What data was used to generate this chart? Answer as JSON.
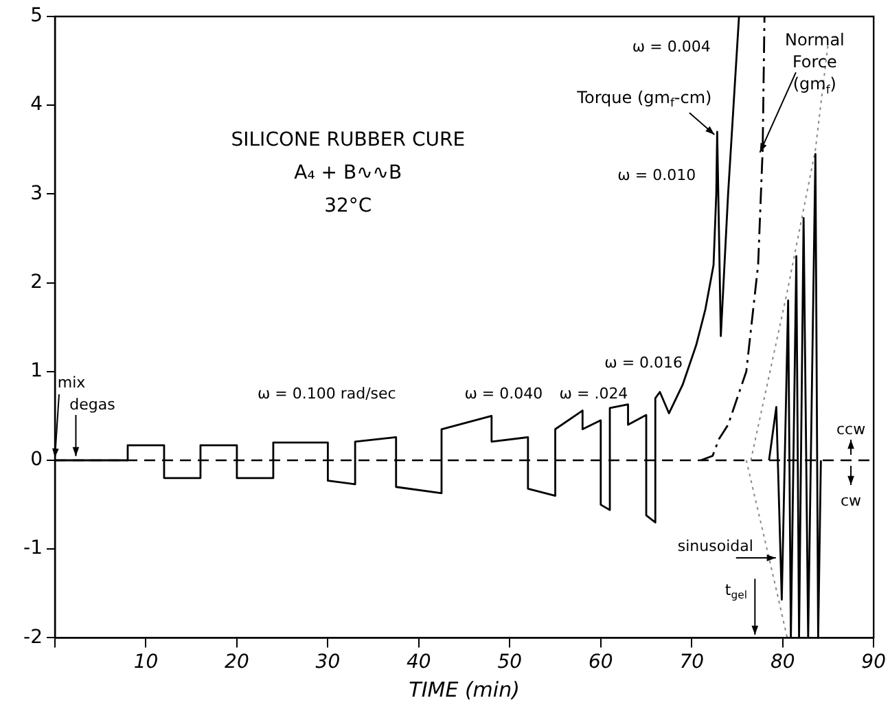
{
  "chart_data": {
    "type": "line",
    "title": "SILICONE RUBBER CURE",
    "subtitle": "A₄ + B∿∿B",
    "xlabel": "TIME (min)",
    "xlim": [
      0,
      90
    ],
    "xticks": [
      {
        "value": 0,
        "label": null
      },
      10,
      20,
      30,
      40,
      50,
      60,
      70,
      80,
      90
    ],
    "ylim": [
      -2,
      5
    ],
    "yticks": [
      -2,
      -1,
      0,
      1,
      2,
      3,
      4,
      5
    ],
    "grid": false,
    "legend": false,
    "marker": "none",
    "ref_lines": [
      {
        "axis": "y",
        "value": 0,
        "line_style": "dashed",
        "color": "#000000"
      }
    ],
    "series": [
      {
        "name": "Torque (gm$_{f}$-cm)",
        "type": "line",
        "color": "#000000",
        "line_style": "solid",
        "x": [
          0,
          8,
          8,
          12,
          12,
          16,
          16,
          20,
          20,
          24,
          24,
          30,
          30,
          33,
          33,
          37.5,
          37.5,
          42.5,
          42.5,
          48,
          48,
          52,
          52,
          55,
          55,
          58,
          58,
          60,
          60,
          61,
          61,
          63,
          63,
          65,
          65,
          66,
          66,
          66.5,
          67.5,
          69,
          70.5,
          71.5,
          72.4,
          72.7,
          72.8,
          73.2,
          73.5,
          74,
          74.6,
          75.2
        ],
        "values": [
          0,
          0,
          0.17,
          0.17,
          -0.2,
          -0.2,
          0.17,
          0.17,
          -0.2,
          -0.2,
          0.2,
          0.2,
          -0.23,
          -0.27,
          0.21,
          0.26,
          -0.3,
          -0.37,
          0.35,
          0.5,
          0.21,
          0.26,
          -0.32,
          -0.4,
          0.35,
          0.56,
          0.35,
          0.45,
          -0.5,
          -0.56,
          0.59,
          0.63,
          0.4,
          0.51,
          -0.62,
          -0.7,
          0.7,
          0.77,
          0.53,
          0.85,
          1.3,
          1.7,
          2.2,
          3.0,
          3.7,
          1.4,
          2.0,
          3.0,
          4.0,
          5.0
        ]
      },
      {
        "name": "Normal Force (gm$_{f}$)",
        "type": "line",
        "color": "#000000",
        "line_style": "dashdot",
        "x": [
          71,
          72.3,
          73,
          74,
          76,
          77.3,
          77.8,
          78
        ],
        "values": [
          0,
          0.05,
          0.24,
          0.4,
          1.0,
          2.2,
          3.5,
          5.0
        ]
      },
      {
        "type": "line",
        "color": "#000000",
        "line_style": "solid",
        "x": [
          78.5,
          79.3,
          79.9,
          80.6,
          80.9,
          81.5,
          81.8,
          82.3,
          82.8,
          83.6,
          83.9,
          84.2
        ],
        "values": [
          0,
          0.6,
          -1.57,
          1.8,
          -2,
          2.3,
          -2,
          2.73,
          -2,
          3.45,
          -2,
          0
        ]
      },
      {
        "type": "line",
        "color": "#888888",
        "line_style": "dotted",
        "x": [
          76.5,
          80.5,
          83.6,
          85
        ],
        "values": [
          0,
          1.9,
          3.5,
          4.7
        ]
      },
      {
        "type": "line",
        "color": "#888888",
        "line_style": "dotted",
        "x": [
          76,
          78.5,
          80.5
        ],
        "values": [
          0,
          -1.1,
          -2
        ]
      }
    ],
    "annotations": [
      "32°C",
      "ω = 0.100 rad/sec",
      "ω = 0.040",
      "ω = .024",
      "ω = 0.016",
      "ω = 0.010",
      "ω = 0.004",
      {
        "text": "mix",
        "x": 0,
        "y": 0
      },
      {
        "text": "degas",
        "x": 2.3,
        "y": 0
      },
      {
        "text": "ccw",
        "x": 87.5,
        "y": 0
      },
      {
        "text": "cw",
        "x": 87.5,
        "y": 0
      },
      {
        "text": "sinusoidal",
        "x": 79.4,
        "y": -1.1
      },
      "t$_{gel}$"
    ]
  }
}
